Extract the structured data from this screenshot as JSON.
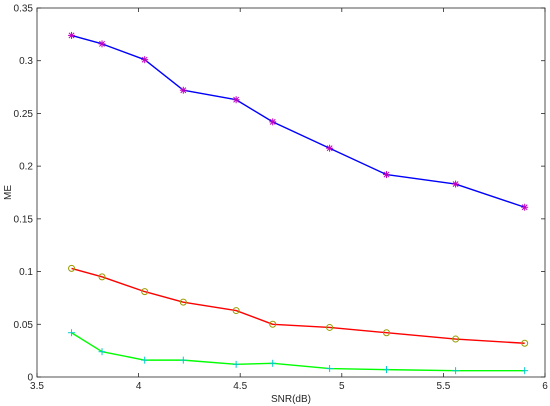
{
  "chart_data": {
    "type": "line",
    "xlabel": "SNR(dB)",
    "ylabel": "ME",
    "xlim": [
      3.5,
      6
    ],
    "ylim": [
      0,
      0.35
    ],
    "xticks": [
      "3.5",
      "4",
      "4.5",
      "5",
      "5.5",
      "6"
    ],
    "yticks": [
      "0",
      "0.05",
      "0.1",
      "0.15",
      "0.2",
      "0.25",
      "0.3",
      "0.35"
    ],
    "grid": false,
    "series": [
      {
        "color": "#0000ff",
        "marker": "asterisk",
        "marker_color": "#c000c0",
        "x": [
          3.67,
          3.82,
          4.03,
          4.22,
          4.48,
          4.66,
          4.94,
          5.22,
          5.56,
          5.9
        ],
        "y": [
          0.324,
          0.316,
          0.301,
          0.272,
          0.263,
          0.242,
          0.217,
          0.192,
          0.183,
          0.161
        ]
      },
      {
        "color": "#ff0000",
        "marker": "circle",
        "marker_color": "#999900",
        "x": [
          3.67,
          3.82,
          4.03,
          4.22,
          4.48,
          4.66,
          4.94,
          5.22,
          5.56,
          5.9
        ],
        "y": [
          0.103,
          0.095,
          0.081,
          0.071,
          0.063,
          0.05,
          0.047,
          0.042,
          0.036,
          0.032
        ]
      },
      {
        "color": "#00ff00",
        "marker": "plus",
        "marker_color": "#00cccc",
        "x": [
          3.67,
          3.82,
          4.03,
          4.22,
          4.48,
          4.66,
          4.94,
          5.22,
          5.56,
          5.9
        ],
        "y": [
          0.042,
          0.024,
          0.016,
          0.016,
          0.012,
          0.013,
          0.008,
          0.007,
          0.006,
          0.006
        ]
      }
    ]
  }
}
